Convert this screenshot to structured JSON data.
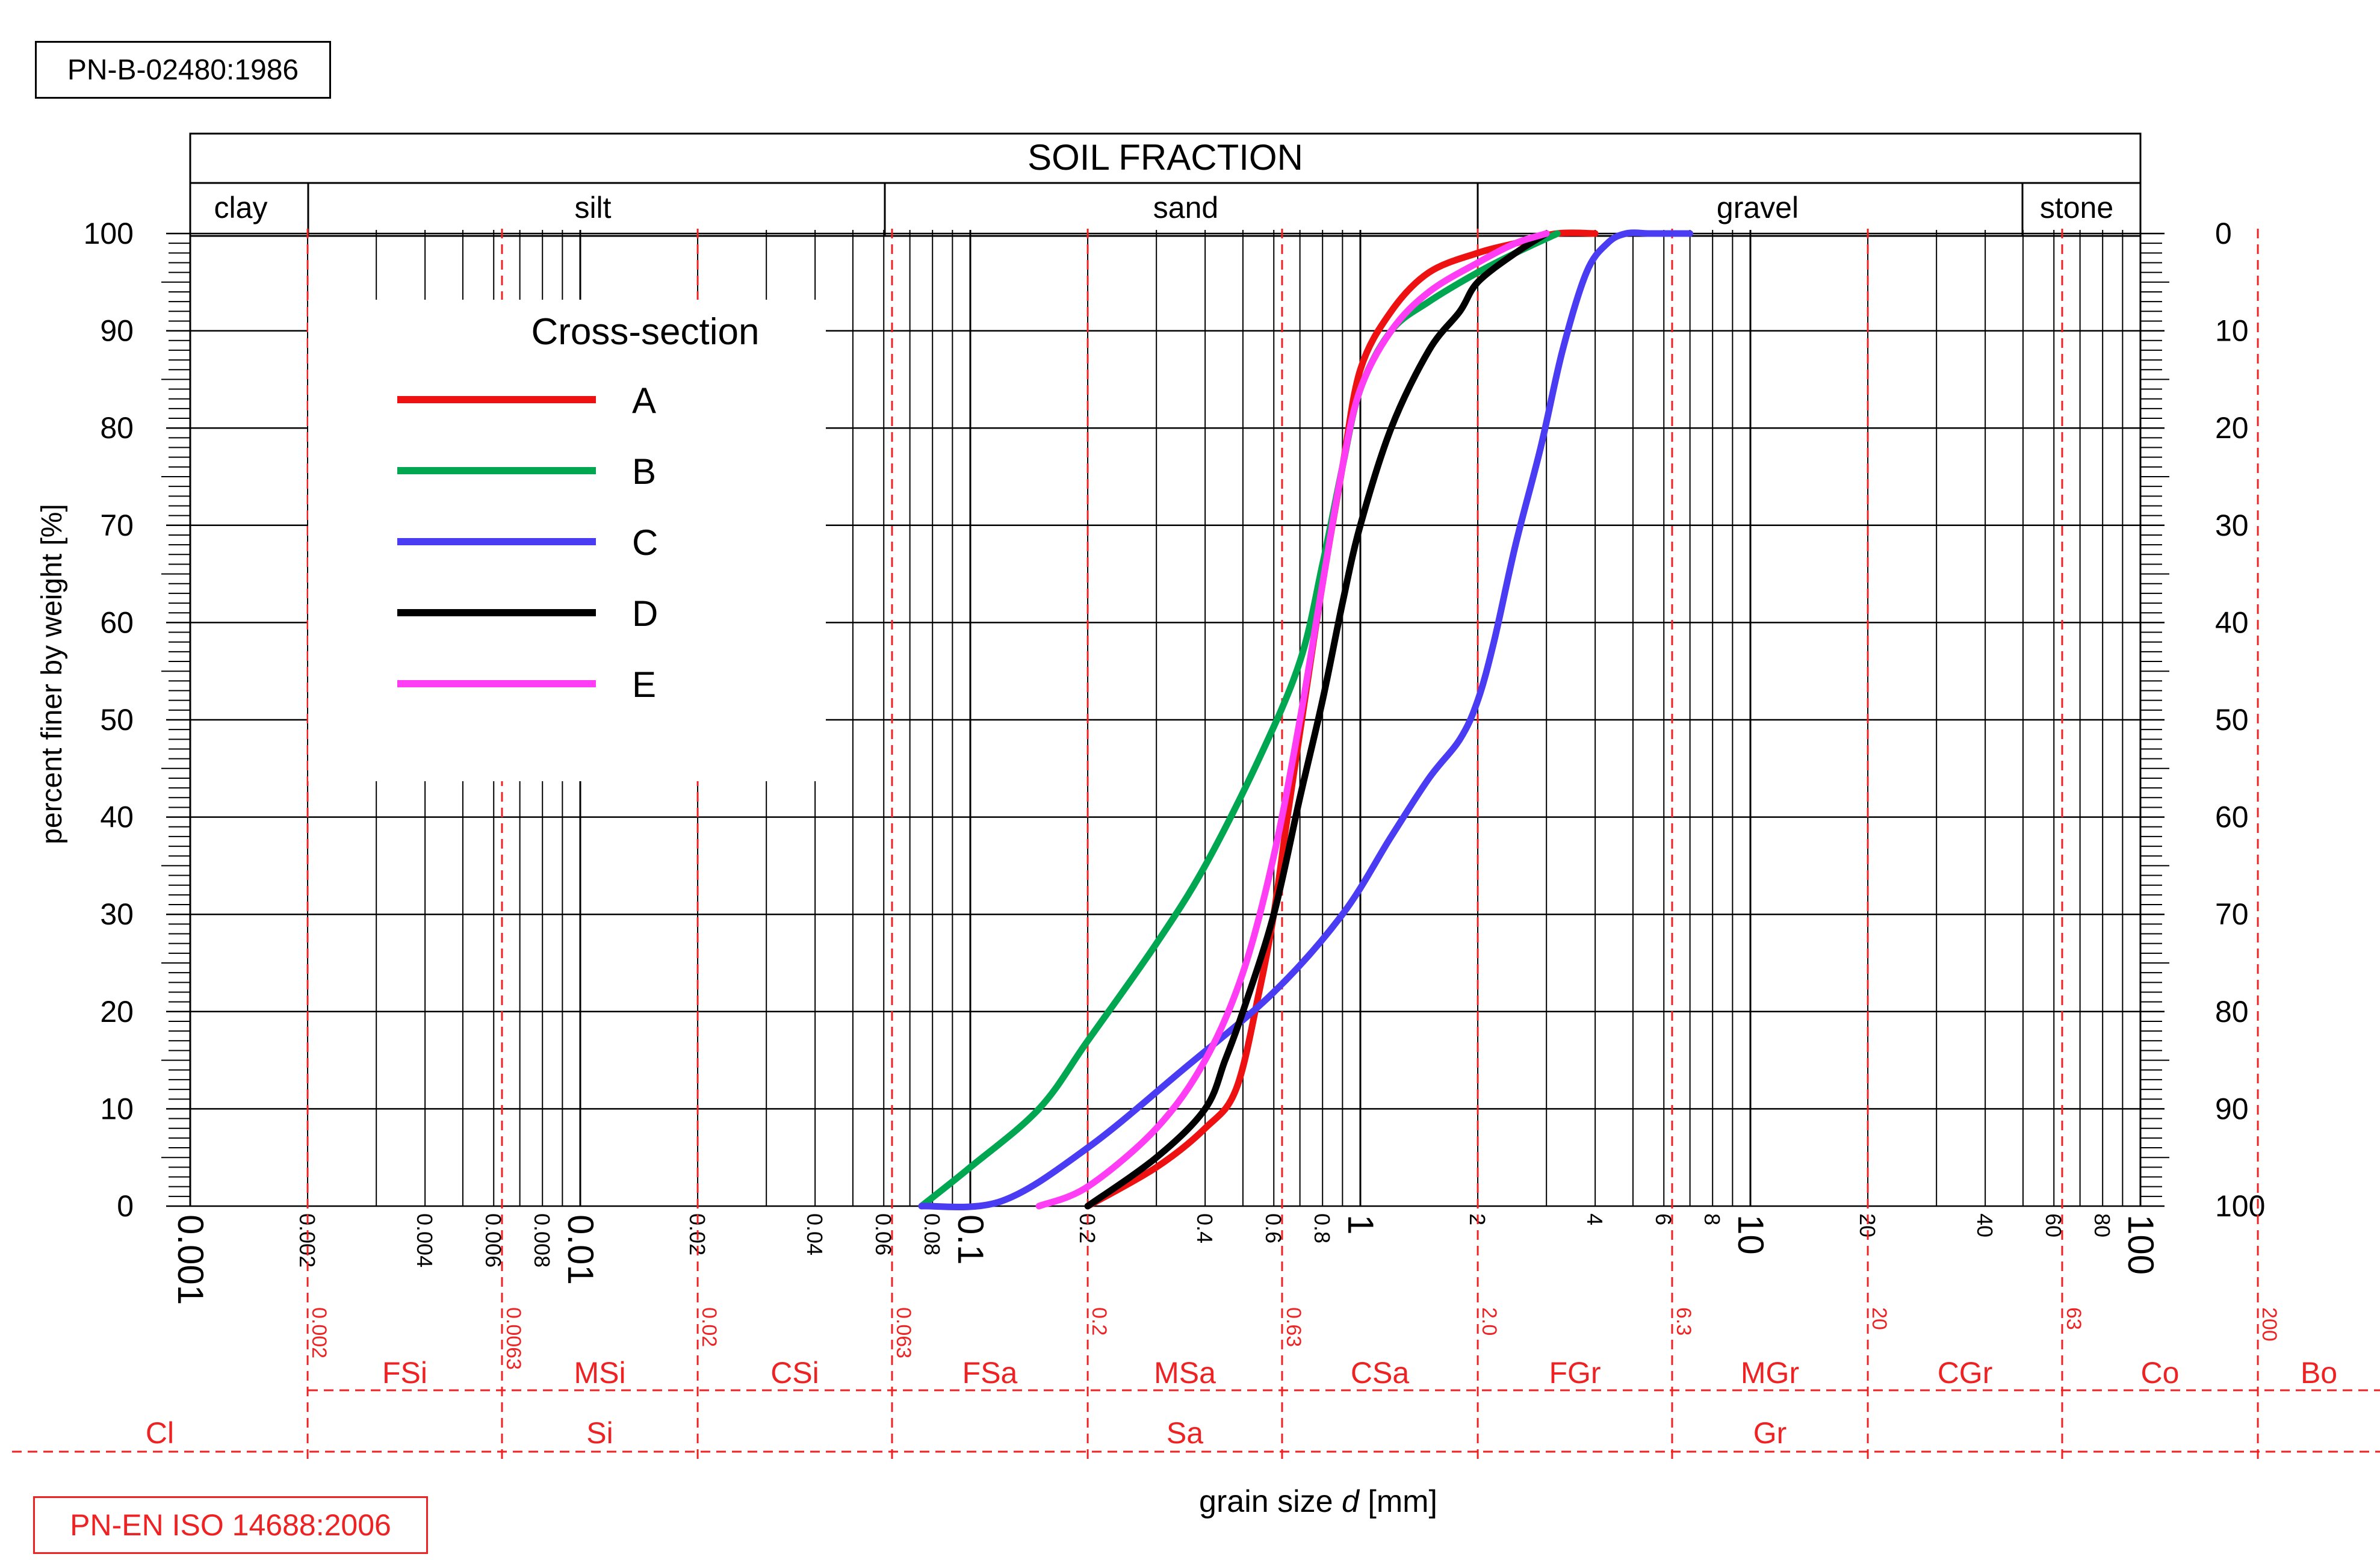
{
  "standards": {
    "top": "PN-B-02480:1986",
    "bottom": "PN-EN ISO 14688:2006"
  },
  "header": {
    "title": "SOIL FRACTION",
    "fractions": [
      "clay",
      "silt",
      "sand",
      "gravel",
      "stone"
    ]
  },
  "en_iso": {
    "boundaries": [
      "0.002",
      "0.0063",
      "0.02",
      "0.063",
      "0.2",
      "0.63",
      "2.0",
      "6.3",
      "20",
      "63",
      "200"
    ],
    "subfractions": [
      "FSi",
      "MSi",
      "CSi",
      "FSa",
      "MSa",
      "CSa",
      "FGr",
      "MGr",
      "CGr",
      "Co",
      "Bo"
    ],
    "main": [
      "Cl",
      "Si",
      "Sa",
      "Gr"
    ]
  },
  "colors": {
    "A": "#ee1111",
    "B": "#00a650",
    "C": "#4a3cf2",
    "D": "#000000",
    "E": "#ff3df4",
    "standard": "#ee2222"
  },
  "chart_data": {
    "type": "line",
    "xscale": "log",
    "xlabel_prefix": "grain size ",
    "xlabel_var": "d",
    "xlabel_unit": " [mm]",
    "ylabel": "percent finer by weight [%]",
    "xlim": [
      0.001,
      100
    ],
    "ylim": [
      0,
      100
    ],
    "yticks": [
      "0",
      "10",
      "20",
      "30",
      "40",
      "50",
      "60",
      "70",
      "80",
      "90",
      "100"
    ],
    "yticks_right": [
      "100",
      "90",
      "80",
      "70",
      "60",
      "50",
      "40",
      "30",
      "20",
      "10",
      "0"
    ],
    "xticks_major": [
      "0.001",
      "0.01",
      "0.1",
      "1",
      "10",
      "100"
    ],
    "xticks_minor": [
      "0.002",
      "0.004",
      "0.006",
      "0.008",
      "0.02",
      "0.04",
      "0.06",
      "0.08",
      "0.2",
      "0.4",
      "0.6",
      "0.8",
      "2",
      "4",
      "6",
      "8",
      "20",
      "40",
      "60",
      "80"
    ],
    "legend_title": "Cross-section",
    "legend_position": "upper-left",
    "grid": true,
    "series": [
      {
        "name": "A",
        "x": [
          0.2,
          0.3,
          0.4,
          0.48,
          0.55,
          0.6,
          0.65,
          0.72,
          0.8,
          0.9,
          1.0,
          1.2,
          1.5,
          2.0,
          2.5,
          3.2,
          4.0
        ],
        "y": [
          0,
          4,
          8,
          12,
          22,
          30,
          40,
          52,
          64,
          76,
          86,
          92,
          96,
          98,
          99,
          100,
          100
        ]
      },
      {
        "name": "B",
        "x": [
          0.075,
          0.1,
          0.15,
          0.2,
          0.3,
          0.4,
          0.55,
          0.7,
          0.8,
          0.9,
          1.0,
          1.2,
          1.5,
          2.0,
          2.5,
          3.2
        ],
        "y": [
          0,
          4,
          10,
          17,
          27,
          35,
          46,
          56,
          66,
          76,
          84,
          90,
          93,
          96,
          98,
          100
        ]
      },
      {
        "name": "C",
        "x": [
          0.075,
          0.12,
          0.2,
          0.35,
          0.6,
          0.9,
          1.2,
          1.5,
          1.8,
          2.0,
          2.2,
          2.5,
          2.9,
          3.3,
          3.8,
          4.3,
          4.8,
          5.5,
          6.0,
          7.0
        ],
        "y": [
          0,
          0.5,
          6,
          14,
          22,
          30,
          38,
          44,
          48,
          52,
          58,
          68,
          78,
          88,
          96,
          99,
          100,
          100,
          100,
          100
        ]
      },
      {
        "name": "D",
        "x": [
          0.2,
          0.3,
          0.4,
          0.45,
          0.5,
          0.6,
          0.7,
          0.8,
          0.9,
          1.0,
          1.2,
          1.5,
          1.8,
          2.0,
          2.5,
          3.0
        ],
        "y": [
          0,
          5,
          10,
          15,
          20,
          30,
          42,
          52,
          62,
          70,
          80,
          88,
          92,
          95,
          98,
          100
        ]
      },
      {
        "name": "E",
        "x": [
          0.15,
          0.2,
          0.3,
          0.4,
          0.5,
          0.6,
          0.7,
          0.8,
          0.9,
          1.0,
          1.2,
          1.5,
          2.0,
          2.5,
          3.0
        ],
        "y": [
          0,
          2,
          8,
          15,
          24,
          36,
          50,
          64,
          76,
          84,
          90,
          94,
          97,
          99,
          100
        ]
      }
    ]
  }
}
